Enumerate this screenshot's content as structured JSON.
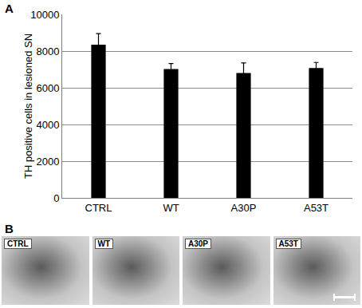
{
  "chart_data": {
    "type": "bar",
    "panel": "A",
    "categories": [
      "CTRL",
      "WT",
      "A30P",
      "A53T"
    ],
    "values": [
      8350,
      7020,
      6800,
      7080
    ],
    "errors": [
      600,
      300,
      550,
      300
    ],
    "color": "#000000",
    "y_label": "TH positive cells in lesioned SN",
    "ylim": [
      0,
      10000
    ],
    "yticks": [
      0,
      2000,
      4000,
      6000,
      8000,
      10000
    ],
    "grid": true
  },
  "images": {
    "panel": "B",
    "captions": [
      "CTRL",
      "WT",
      "A30P",
      "A53T"
    ]
  }
}
